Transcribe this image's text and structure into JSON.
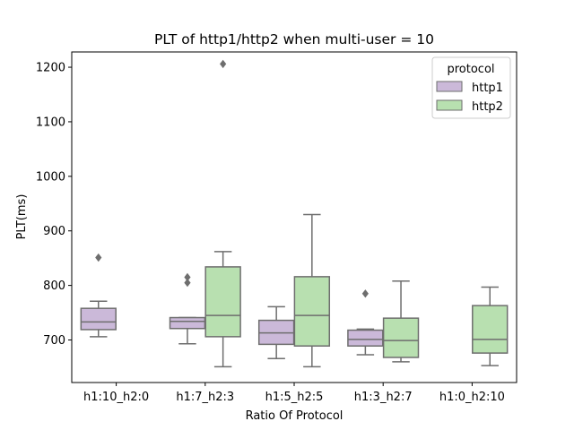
{
  "chart_data": {
    "type": "boxplot",
    "title": "PLT of http1/http2 when multi-user = 10",
    "xlabel": "Ratio Of Protocol",
    "ylabel": "PLT(ms)",
    "ylim": [
      622,
      1228
    ],
    "yticks": [
      700,
      800,
      900,
      1000,
      1100,
      1200
    ],
    "grid": false,
    "categories": [
      "h1:10_h2:0",
      "h1:7_h2:3",
      "h1:5_h2:5",
      "h1:3_h2:7",
      "h1:0_h2:10"
    ],
    "legend": {
      "title": "protocol",
      "placement": "top-right",
      "entries": [
        "http1",
        "http2"
      ]
    },
    "series": [
      {
        "name": "http1",
        "color": "#cbb9d9",
        "boxes": [
          {
            "category": "h1:10_h2:0",
            "whislo": 706,
            "q1": 719,
            "med": 733,
            "q3": 758,
            "whishi": 771,
            "fliers": [
              851
            ]
          },
          {
            "category": "h1:7_h2:3",
            "whislo": 693,
            "q1": 721,
            "med": 734,
            "q3": 741,
            "whishi": 741,
            "fliers": [
              805,
              815
            ]
          },
          {
            "category": "h1:5_h2:5",
            "whislo": 666,
            "q1": 692,
            "med": 713,
            "q3": 736,
            "whishi": 761,
            "fliers": []
          },
          {
            "category": "h1:3_h2:7",
            "whislo": 673,
            "q1": 689,
            "med": 701,
            "q3": 718,
            "whishi": 720,
            "fliers": [
              785
            ]
          },
          null
        ]
      },
      {
        "name": "http2",
        "color": "#b8e0b0",
        "boxes": [
          null,
          {
            "category": "h1:7_h2:3",
            "whislo": 651,
            "q1": 706,
            "med": 745,
            "q3": 834,
            "whishi": 862,
            "fliers": [
              1206
            ]
          },
          {
            "category": "h1:5_h2:5",
            "whislo": 651,
            "q1": 689,
            "med": 745,
            "q3": 816,
            "whishi": 930,
            "fliers": []
          },
          {
            "category": "h1:3_h2:7",
            "whislo": 660,
            "q1": 668,
            "med": 699,
            "q3": 740,
            "whishi": 808,
            "fliers": []
          },
          {
            "category": "h1:0_h2:10",
            "whislo": 653,
            "q1": 676,
            "med": 701,
            "q3": 763,
            "whishi": 797,
            "fliers": []
          }
        ]
      }
    ]
  }
}
